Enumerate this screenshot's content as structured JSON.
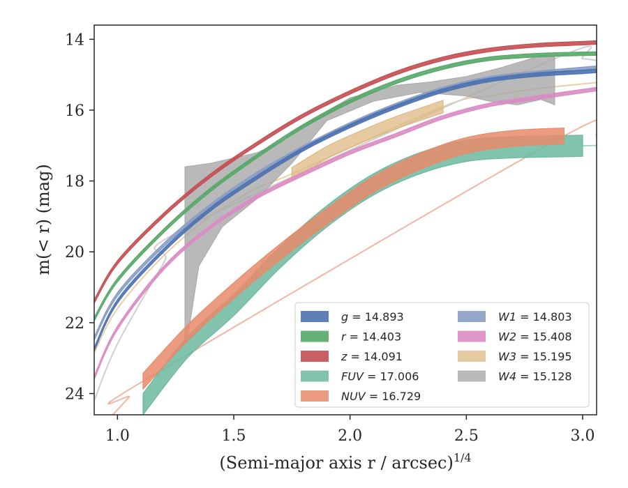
{
  "chart_data": {
    "type": "line",
    "title": "",
    "xlabel": "(Semi-major axis r / arcsec)",
    "xlabel_exponent": "1/4",
    "ylabel": "m(< r) (mag)",
    "xlim": [
      0.9,
      3.06
    ],
    "ylim": [
      24.6,
      13.6
    ],
    "y_inverted": true,
    "grid": false,
    "legend_position": "lower-right",
    "x_ticks": [
      "1.0",
      "1.5",
      "2.0",
      "2.5",
      "3.0"
    ],
    "x_tick_values": [
      1.0,
      1.5,
      2.0,
      2.5,
      3.0
    ],
    "y_ticks": [
      "14",
      "16",
      "18",
      "20",
      "22",
      "24"
    ],
    "y_tick_values": [
      14,
      16,
      18,
      20,
      22,
      24
    ],
    "series": [
      {
        "name": "g",
        "total": "14.893",
        "label": "g = 14.893",
        "color": "#4c72b0",
        "band": 0.1,
        "opacity": 0.9,
        "x": [
          0.9,
          1.0,
          1.2,
          1.4,
          1.6,
          1.8,
          2.0,
          2.2,
          2.4,
          2.6,
          2.8,
          3.0,
          3.06
        ],
        "y": [
          22.75,
          21.4,
          19.95,
          18.8,
          17.9,
          17.1,
          16.45,
          15.9,
          15.45,
          15.15,
          15.0,
          14.92,
          14.893
        ]
      },
      {
        "name": "r",
        "total": "14.403",
        "label": "r = 14.403",
        "color": "#55a868",
        "band": 0.1,
        "opacity": 0.9,
        "x": [
          0.9,
          1.0,
          1.2,
          1.4,
          1.6,
          1.8,
          2.0,
          2.2,
          2.4,
          2.6,
          2.8,
          3.0,
          3.06
        ],
        "y": [
          21.9,
          20.8,
          19.4,
          18.25,
          17.3,
          16.45,
          15.75,
          15.2,
          14.8,
          14.55,
          14.45,
          14.41,
          14.403
        ]
      },
      {
        "name": "z",
        "total": "14.091",
        "label": "z = 14.091",
        "color": "#c44e52",
        "band": 0.1,
        "opacity": 0.9,
        "x": [
          0.9,
          1.0,
          1.2,
          1.4,
          1.6,
          1.8,
          2.0,
          2.2,
          2.4,
          2.6,
          2.8,
          3.0,
          3.06
        ],
        "y": [
          21.4,
          20.3,
          18.95,
          17.85,
          16.95,
          16.15,
          15.5,
          14.95,
          14.55,
          14.3,
          14.17,
          14.11,
          14.091
        ]
      },
      {
        "name": "FUV",
        "total": "17.006",
        "label": "FUV = 17.006",
        "color": "#6cb8a0",
        "band": 0.6,
        "opacity": 0.85,
        "x": [
          1.11,
          1.3,
          1.5,
          1.7,
          1.9,
          2.1,
          2.3,
          2.5,
          2.7,
          2.9,
          3.0
        ],
        "y": [
          24.3,
          22.7,
          21.5,
          20.15,
          19.0,
          18.1,
          17.5,
          17.15,
          17.05,
          17.02,
          17.006
        ]
      },
      {
        "name": "NUV",
        "total": "16.729",
        "label": "NUV = 16.729",
        "color": "#e8896a",
        "band": 0.45,
        "opacity": 0.85,
        "x": [
          1.11,
          1.3,
          1.5,
          1.7,
          1.9,
          2.1,
          2.3,
          2.5,
          2.7,
          2.92
        ],
        "y": [
          23.65,
          22.3,
          21.1,
          20.0,
          19.0,
          18.1,
          17.45,
          17.0,
          16.8,
          16.729
        ]
      },
      {
        "name": "W1",
        "total": "14.803",
        "label": "W1 = 14.803",
        "color": "#8a9cc5",
        "band": 0.1,
        "opacity": 0.9,
        "x": [
          0.9,
          1.0,
          1.2,
          1.4,
          1.6,
          1.8,
          2.0,
          2.2,
          2.4,
          2.6,
          2.8,
          3.06
        ],
        "y": [
          22.45,
          21.2,
          19.8,
          18.7,
          17.8,
          17.05,
          16.4,
          15.85,
          15.4,
          15.1,
          14.95,
          14.803
        ]
      },
      {
        "name": "W2",
        "total": "15.408",
        "label": "W2 = 15.408",
        "color": "#da8bc3",
        "band": 0.1,
        "opacity": 0.9,
        "x": [
          0.9,
          1.0,
          1.2,
          1.4,
          1.6,
          1.8,
          2.0,
          2.2,
          2.4,
          2.6,
          2.8,
          3.06
        ],
        "y": [
          23.55,
          22.15,
          20.45,
          19.3,
          18.45,
          17.8,
          17.2,
          16.7,
          16.2,
          15.85,
          15.65,
          15.408
        ]
      },
      {
        "name": "W3",
        "total": "15.195",
        "label": "W3 = 15.195",
        "color": "#ddb882",
        "band": 0.35,
        "opacity": 0.75,
        "x": [
          1.75,
          1.9,
          2.05,
          2.2,
          2.4
        ],
        "y": [
          17.8,
          17.2,
          16.75,
          16.35,
          15.9
        ]
      },
      {
        "name": "W4",
        "total": "15.128",
        "label": "W4 = 15.128",
        "color": "#a8a8a8",
        "band": 0.0,
        "opacity": 0.8,
        "upper_x": [
          1.29,
          1.4,
          1.6,
          1.7,
          1.8,
          2.0,
          2.2,
          2.35,
          2.5,
          2.65,
          2.75,
          2.82,
          2.88
        ],
        "upper_y": [
          17.6,
          17.5,
          17.2,
          16.9,
          16.4,
          15.65,
          15.3,
          15.2,
          15.05,
          14.8,
          14.6,
          14.45,
          14.5
        ],
        "lower_x": [
          2.88,
          2.82,
          2.72,
          2.6,
          2.5,
          2.3,
          2.1,
          1.9,
          1.75,
          1.6,
          1.45,
          1.35,
          1.3,
          1.29
        ],
        "lower_y": [
          15.85,
          15.7,
          15.85,
          15.75,
          15.6,
          15.5,
          15.75,
          16.3,
          17.5,
          18.5,
          19.3,
          20.4,
          22.5,
          22.6
        ]
      }
    ],
    "faint_extensions": [
      {
        "name": "W3-model",
        "color": "#e8cfa6",
        "x": [
          0.9,
          1.0,
          1.2,
          1.4,
          1.6,
          1.75,
          2.4,
          2.6,
          2.8,
          3.06
        ],
        "y": [
          22.85,
          21.6,
          20.1,
          19.0,
          18.2,
          17.8,
          15.9,
          15.6,
          15.4,
          15.22
        ]
      },
      {
        "name": "W4-model",
        "color": "#cfcfcf",
        "x": [
          0.9,
          1.0,
          1.2,
          1.3,
          2.88,
          3.0,
          3.06
        ],
        "y": [
          24.2,
          22.6,
          20.3,
          19.3,
          14.55,
          14.55,
          14.6
        ]
      },
      {
        "name": "NUV-model",
        "color": "#f0b7a3",
        "x": [
          0.98,
          1.05,
          1.11,
          2.92,
          3.06
        ],
        "y": [
          24.6,
          24.1,
          23.65,
          16.729,
          16.72
        ]
      },
      {
        "name": "FUV-model",
        "color": "#a9d6c6",
        "x": [
          3.0,
          3.06
        ],
        "y": [
          17.006,
          17.0
        ]
      }
    ]
  }
}
